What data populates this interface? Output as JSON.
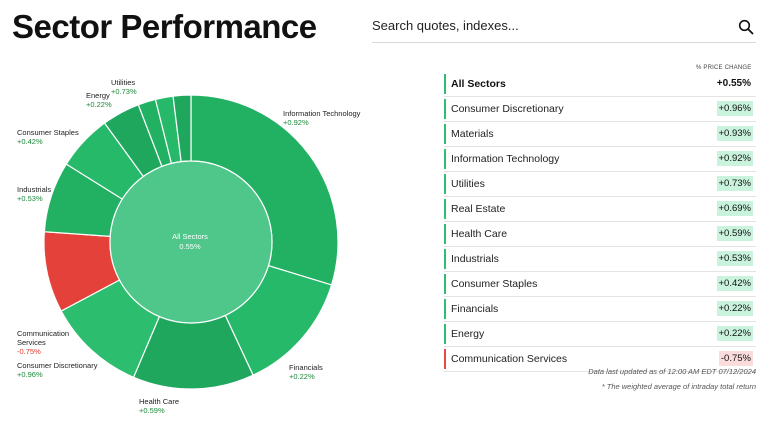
{
  "page": {
    "title": "Sector Performance"
  },
  "search": {
    "placeholder": "Search quotes, indexes..."
  },
  "icons": {
    "search": "search-icon"
  },
  "colors": {
    "positive_fill": "#c9f3dc",
    "negative_fill": "#fbdcdc",
    "positive_text": "#1a8a3a",
    "negative_text": "#e03a2f",
    "donut_green": "#22b063",
    "donut_red": "#e5413b",
    "donut_center": "#4fc68a"
  },
  "donut": {
    "center_label": "All Sectors",
    "center_value": "0.55%",
    "labels": [
      {
        "name": "Information Technology",
        "change": "+0.92%"
      },
      {
        "name": "Financials",
        "change": "+0.22%"
      },
      {
        "name": "Health Care",
        "change": "+0.59%"
      },
      {
        "name": "Consumer Discretionary",
        "change": "+0.96%"
      },
      {
        "name": "Communication Services",
        "change": "-0.75%"
      },
      {
        "name": "Industrials",
        "change": "+0.53%"
      },
      {
        "name": "Consumer Staples",
        "change": "+0.42%"
      },
      {
        "name": "Energy",
        "change": "+0.22%"
      },
      {
        "name": "Utilities",
        "change": "+0.73%"
      }
    ]
  },
  "table": {
    "header": "% PRICE CHANGE",
    "rows": [
      {
        "name": "All Sectors",
        "change": "+0.55%"
      },
      {
        "name": "Consumer Discretionary",
        "change": "+0.96%"
      },
      {
        "name": "Materials",
        "change": "+0.93%"
      },
      {
        "name": "Information Technology",
        "change": "+0.92%"
      },
      {
        "name": "Utilities",
        "change": "+0.73%"
      },
      {
        "name": "Real Estate",
        "change": "+0.69%"
      },
      {
        "name": "Health Care",
        "change": "+0.59%"
      },
      {
        "name": "Industrials",
        "change": "+0.53%"
      },
      {
        "name": "Consumer Staples",
        "change": "+0.42%"
      },
      {
        "name": "Financials",
        "change": "+0.22%"
      },
      {
        "name": "Energy",
        "change": "+0.22%"
      },
      {
        "name": "Communication Services",
        "change": "-0.75%"
      }
    ]
  },
  "footer": {
    "updated": "Data last updated as of 12:00 AM EDT 07/12/2024",
    "note": "* The weighted average of intraday total return"
  }
}
